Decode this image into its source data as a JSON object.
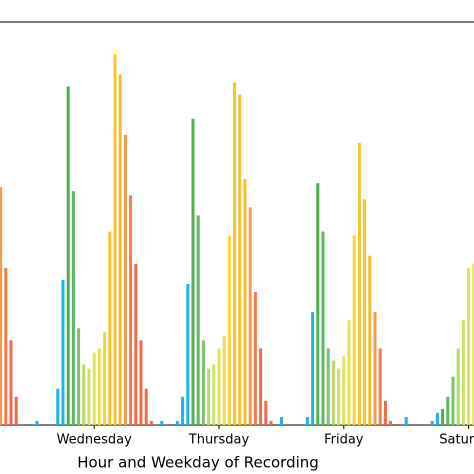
{
  "chart_data": {
    "type": "bar",
    "xlabel": "Hour and Weekday of Recording",
    "categories": [
      null,
      null,
      null,
      null,
      null,
      null,
      null,
      null,
      null,
      null,
      null,
      null,
      null,
      null,
      null,
      null,
      null,
      null,
      "Wednesday",
      null,
      null,
      null,
      null,
      null,
      null,
      null,
      null,
      null,
      null,
      null,
      null,
      null,
      null,
      null,
      null,
      null,
      null,
      null,
      null,
      null,
      null,
      null,
      "Thursday",
      null,
      null,
      null,
      null,
      null,
      null,
      null,
      null,
      null,
      null,
      null,
      null,
      null,
      null,
      null,
      null,
      null,
      null,
      null,
      null,
      null,
      null,
      null,
      "Friday",
      null,
      null,
      null,
      null,
      null,
      null,
      null,
      null,
      null,
      null,
      null,
      null,
      null,
      null,
      null,
      null,
      null,
      null,
      null,
      null,
      null,
      null,
      null,
      "Saturday",
      null
    ],
    "values": [
      59,
      39,
      21,
      7,
      0,
      0,
      0,
      1,
      0,
      0,
      0,
      9,
      36,
      84,
      58,
      24,
      15,
      14,
      18,
      19,
      23,
      48,
      92,
      87,
      72,
      57,
      40,
      21,
      9,
      1,
      0,
      1,
      0,
      0,
      1,
      7,
      35,
      76,
      52,
      21,
      14,
      15,
      19,
      22,
      47,
      85,
      82,
      61,
      54,
      33,
      19,
      6,
      1,
      0,
      2,
      0,
      0,
      0,
      0,
      2,
      28,
      60,
      48,
      19,
      16,
      14,
      17,
      26,
      47,
      70,
      56,
      42,
      28,
      19,
      6,
      1,
      0,
      0,
      2,
      0,
      0,
      0,
      0,
      1,
      3,
      4,
      7,
      12,
      19,
      26,
      39,
      40
    ],
    "colors": [
      "#f59a4a",
      "#f47c4a",
      "#ee6a48",
      "#ee6a48",
      "#ee6a48",
      "#ee6a48",
      "#20b2e6",
      "#20b2e6",
      "#20b2e6",
      "#20b2e6",
      "#20b2e6",
      "#20b2e6",
      "#20b2e6",
      "#4caf50",
      "#5cb85c",
      "#7cc36a",
      "#b5d96a",
      "#cfe06a",
      "#dde35a",
      "#e9e04e",
      "#f5d33c",
      "#f7c52a",
      "#f7c52a",
      "#f6b92a",
      "#f59a4a",
      "#f47c4a",
      "#ee6a48",
      "#ee6a48",
      "#ee6a48",
      "#ee6a48",
      "#20b2e6",
      "#20b2e6",
      "#20b2e6",
      "#20b2e6",
      "#20b2e6",
      "#20b2e6",
      "#20b2e6",
      "#4caf50",
      "#5cb85c",
      "#7cc36a",
      "#b5d96a",
      "#cfe06a",
      "#dde35a",
      "#e9e04e",
      "#f5d33c",
      "#f7c52a",
      "#f7c52a",
      "#f6b92a",
      "#f59a4a",
      "#f47c4a",
      "#ee6a48",
      "#ee6a48",
      "#ee6a48",
      "#ee6a48",
      "#20b2e6",
      "#20b2e6",
      "#20b2e6",
      "#20b2e6",
      "#20b2e6",
      "#20b2e6",
      "#20b2e6",
      "#4caf50",
      "#5cb85c",
      "#7cc36a",
      "#b5d96a",
      "#cfe06a",
      "#dde35a",
      "#e9e04e",
      "#f5d33c",
      "#f7c52a",
      "#f7c52a",
      "#f6b92a",
      "#f59a4a",
      "#f47c4a",
      "#ee6a48",
      "#ee6a48",
      "#ee6a48",
      "#ee6a48",
      "#20b2e6",
      "#20b2e6",
      "#20b2e6",
      "#20b2e6",
      "#20b2e6",
      "#20b2e6",
      "#20b2e6",
      "#4caf50",
      "#5cb85c",
      "#7cc36a",
      "#b5d96a",
      "#cfe06a",
      "#dde35a",
      "#e9e04e"
    ],
    "ylim": [
      0,
      100
    ]
  }
}
